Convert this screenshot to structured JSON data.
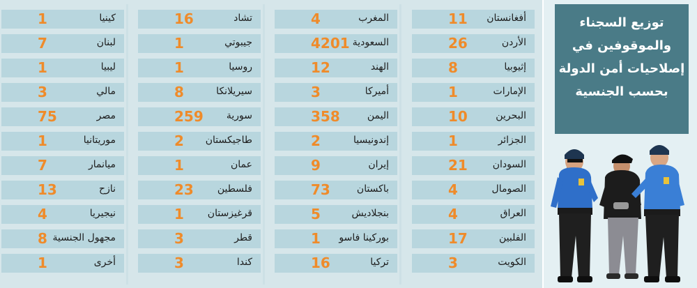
{
  "title": "توزيع السجناء والموقوفين في إصلاحيات أمن الدولة بحسب الجنسية",
  "columns": [
    [
      {
        "name": "أفغانستان",
        "count": "11"
      },
      {
        "name": "الأردن",
        "count": "26"
      },
      {
        "name": "إثيوبيا",
        "count": "8"
      },
      {
        "name": "الإمارات",
        "count": "1"
      },
      {
        "name": "البحرين",
        "count": "10"
      },
      {
        "name": "الجزائر",
        "count": "1"
      },
      {
        "name": "السودان",
        "count": "21"
      },
      {
        "name": "الصومال",
        "count": "4"
      },
      {
        "name": "العراق",
        "count": "4"
      },
      {
        "name": "الفلبين",
        "count": "17"
      },
      {
        "name": "الكويت",
        "count": "3"
      }
    ],
    [
      {
        "name": "المغرب",
        "count": "4"
      },
      {
        "name": "السعودية",
        "count": "4201"
      },
      {
        "name": "الهند",
        "count": "12"
      },
      {
        "name": "أميركا",
        "count": "3"
      },
      {
        "name": "اليمن",
        "count": "358"
      },
      {
        "name": "إندونيسيا",
        "count": "2"
      },
      {
        "name": "إيران",
        "count": "9"
      },
      {
        "name": "باكستان",
        "count": "73"
      },
      {
        "name": "بنجلاديش",
        "count": "5"
      },
      {
        "name": "بوركينا فاسو",
        "count": "1"
      },
      {
        "name": "تركيا",
        "count": "16"
      }
    ],
    [
      {
        "name": "تشاد",
        "count": "16"
      },
      {
        "name": "جيبوتي",
        "count": "1"
      },
      {
        "name": "روسيا",
        "count": "1"
      },
      {
        "name": "سيريلانكا",
        "count": "8"
      },
      {
        "name": "سورية",
        "count": "259"
      },
      {
        "name": "طاجيكستان",
        "count": "2"
      },
      {
        "name": "عمان",
        "count": "1"
      },
      {
        "name": "فلسطين",
        "count": "23"
      },
      {
        "name": "قرغيزستان",
        "count": "1"
      },
      {
        "name": "قطر",
        "count": "3"
      },
      {
        "name": "كندا",
        "count": "3"
      }
    ],
    [
      {
        "name": "كينيا",
        "count": "1"
      },
      {
        "name": "لبنان",
        "count": "7"
      },
      {
        "name": "ليبيا",
        "count": "1"
      },
      {
        "name": "مالي",
        "count": "3"
      },
      {
        "name": "مصر",
        "count": "75"
      },
      {
        "name": "موريتانيا",
        "count": "1"
      },
      {
        "name": "ميانمار",
        "count": "7"
      },
      {
        "name": "نازح",
        "count": "13"
      },
      {
        "name": "نيجيريا",
        "count": "4"
      },
      {
        "name": "مجهول الجنسية",
        "count": "8"
      },
      {
        "name": "أخرى",
        "count": "1"
      }
    ]
  ],
  "colors": {
    "number": "#ef8b2a",
    "row": "#b8d6de",
    "title_box": "#4a7b87",
    "background": "#d6e6ea"
  },
  "illustration": "police-escorting-prisoner"
}
